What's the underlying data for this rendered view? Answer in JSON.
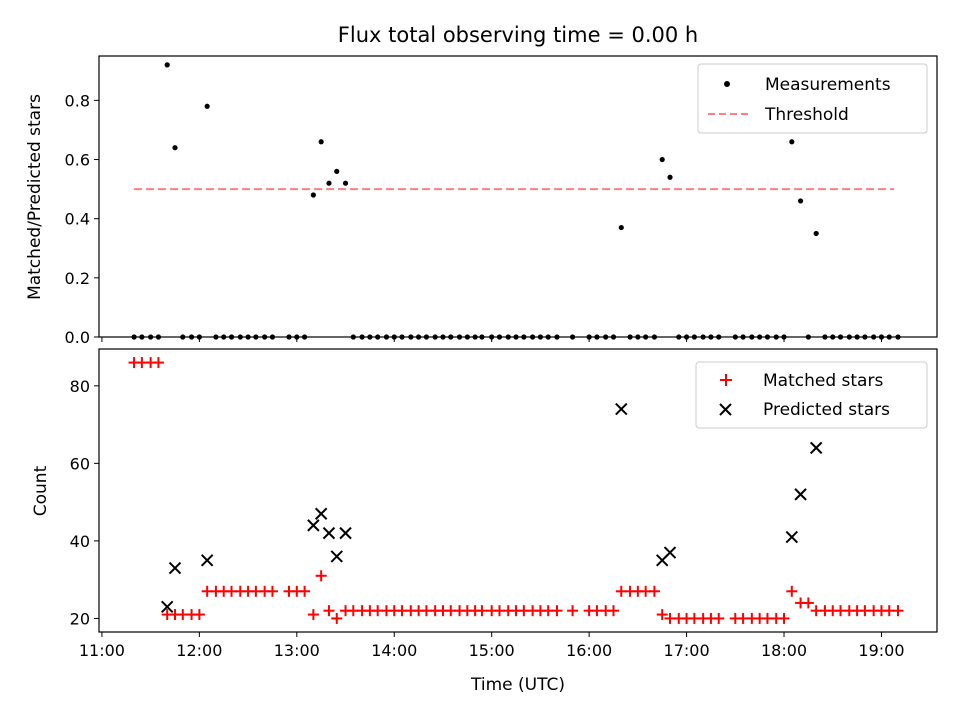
{
  "chart_data": [
    {
      "type": "scatter",
      "title": "Flux total observing time = 0.00 h",
      "xlabel": "",
      "ylabel": "Matched/Predicted stars",
      "xlim": [
        10.97,
        19.57
      ],
      "ylim": [
        0,
        0.95
      ],
      "yticks": [
        0.0,
        0.2,
        0.4,
        0.6,
        0.8
      ],
      "ytick_labels": [
        "0.0",
        "0.2",
        "0.4",
        "0.6",
        "0.8"
      ],
      "xticks": [
        11,
        12,
        13,
        14,
        15,
        16,
        17,
        18,
        19
      ],
      "legend": {
        "position": "top-right",
        "entries": [
          "Measurements",
          "Threshold"
        ]
      },
      "threshold": {
        "name": "Threshold",
        "value": 0.5,
        "x_range": [
          11.33,
          19.13
        ],
        "color": "#ff7f7f"
      },
      "series": [
        {
          "name": "Measurements",
          "color": "#000000",
          "marker": "dot",
          "x": [
            11.33,
            11.41,
            11.5,
            11.58,
            11.67,
            11.75,
            11.83,
            11.92,
            12.0,
            12.08,
            12.17,
            12.25,
            12.33,
            12.42,
            12.5,
            12.58,
            12.67,
            12.75,
            12.92,
            13.0,
            13.08,
            13.17,
            13.25,
            13.33,
            13.41,
            13.5,
            13.58,
            13.67,
            13.75,
            13.83,
            13.92,
            14.0,
            14.08,
            14.17,
            14.25,
            14.33,
            14.42,
            14.5,
            14.58,
            14.67,
            14.75,
            14.83,
            14.9,
            15.0,
            15.08,
            15.17,
            15.25,
            15.33,
            15.42,
            15.5,
            15.58,
            15.67,
            15.83,
            16.0,
            16.08,
            16.17,
            16.25,
            16.33,
            16.42,
            16.5,
            16.58,
            16.67,
            16.75,
            16.83,
            16.92,
            17.0,
            17.08,
            17.17,
            17.25,
            17.33,
            17.5,
            17.58,
            17.67,
            17.75,
            17.83,
            17.92,
            18.0,
            18.08,
            18.17,
            18.25,
            18.33,
            18.42,
            18.5,
            18.58,
            18.67,
            18.75,
            18.83,
            18.92,
            19.0,
            19.08,
            19.17
          ],
          "y": [
            0,
            0,
            0,
            0,
            0.92,
            0.64,
            0,
            0,
            0,
            0.78,
            0,
            0,
            0,
            0,
            0,
            0,
            0,
            0,
            0,
            0,
            0,
            0.48,
            0.66,
            0.52,
            0.56,
            0.52,
            0,
            0,
            0,
            0,
            0,
            0,
            0,
            0,
            0,
            0,
            0,
            0,
            0,
            0,
            0,
            0,
            0,
            0,
            0,
            0,
            0,
            0,
            0,
            0,
            0,
            0,
            0,
            0,
            0,
            0,
            0,
            0.37,
            0,
            0,
            0,
            0,
            0.6,
            0.54,
            0,
            0,
            0,
            0,
            0,
            0,
            0,
            0,
            0,
            0,
            0,
            0,
            0,
            0.66,
            0.46,
            0,
            0.35,
            0,
            0,
            0,
            0,
            0,
            0,
            0,
            0,
            0,
            0
          ]
        }
      ]
    },
    {
      "type": "scatter",
      "title": "",
      "xlabel": "Time (UTC)",
      "ylabel": "Count",
      "xlim": [
        10.97,
        19.57
      ],
      "ylim": [
        16.5,
        89.5
      ],
      "yticks": [
        20,
        40,
        60,
        80
      ],
      "ytick_labels": [
        "20",
        "40",
        "60",
        "80"
      ],
      "xticks": [
        11,
        12,
        13,
        14,
        15,
        16,
        17,
        18,
        19
      ],
      "xtick_labels": [
        "11:00",
        "12:00",
        "13:00",
        "14:00",
        "15:00",
        "16:00",
        "17:00",
        "18:00",
        "19:00"
      ],
      "legend": {
        "position": "top-right",
        "entries": [
          "Matched stars",
          "Predicted stars"
        ]
      },
      "series": [
        {
          "name": "Matched stars",
          "color": "#ff0000",
          "marker": "plus",
          "x": [
            11.33,
            11.41,
            11.5,
            11.58,
            11.67,
            11.75,
            11.83,
            11.92,
            12.0,
            12.08,
            12.17,
            12.25,
            12.33,
            12.42,
            12.5,
            12.58,
            12.67,
            12.75,
            12.92,
            13.0,
            13.08,
            13.17,
            13.25,
            13.33,
            13.41,
            13.5,
            13.58,
            13.67,
            13.75,
            13.83,
            13.92,
            14.0,
            14.08,
            14.17,
            14.25,
            14.33,
            14.42,
            14.5,
            14.58,
            14.67,
            14.75,
            14.83,
            14.9,
            15.0,
            15.08,
            15.17,
            15.25,
            15.33,
            15.42,
            15.5,
            15.58,
            15.67,
            15.83,
            16.0,
            16.08,
            16.17,
            16.25,
            16.33,
            16.42,
            16.5,
            16.58,
            16.67,
            16.75,
            16.83,
            16.92,
            17.0,
            17.08,
            17.17,
            17.25,
            17.33,
            17.5,
            17.58,
            17.67,
            17.75,
            17.83,
            17.92,
            18.0,
            18.08,
            18.17,
            18.25,
            18.33,
            18.42,
            18.5,
            18.58,
            18.67,
            18.75,
            18.83,
            18.92,
            19.0,
            19.08,
            19.17
          ],
          "y": [
            86,
            86,
            86,
            86,
            21,
            21,
            21,
            21,
            21,
            27,
            27,
            27,
            27,
            27,
            27,
            27,
            27,
            27,
            27,
            27,
            27,
            21,
            31,
            22,
            20,
            22,
            22,
            22,
            22,
            22,
            22,
            22,
            22,
            22,
            22,
            22,
            22,
            22,
            22,
            22,
            22,
            22,
            22,
            22,
            22,
            22,
            22,
            22,
            22,
            22,
            22,
            22,
            22,
            22,
            22,
            22,
            22,
            27,
            27,
            27,
            27,
            27,
            21,
            20,
            20,
            20,
            20,
            20,
            20,
            20,
            20,
            20,
            20,
            20,
            20,
            20,
            20,
            27,
            24,
            24,
            22,
            22,
            22,
            22,
            22,
            22,
            22,
            22,
            22,
            22,
            22
          ]
        },
        {
          "name": "Predicted stars",
          "color": "#000000",
          "marker": "x",
          "x": [
            11.67,
            11.75,
            12.08,
            13.17,
            13.25,
            13.33,
            13.41,
            13.5,
            16.33,
            16.75,
            16.83,
            18.08,
            18.17,
            18.33
          ],
          "y": [
            23,
            33,
            35,
            44,
            47,
            42,
            36,
            42,
            74,
            35,
            37,
            41,
            52,
            64
          ]
        }
      ]
    }
  ]
}
